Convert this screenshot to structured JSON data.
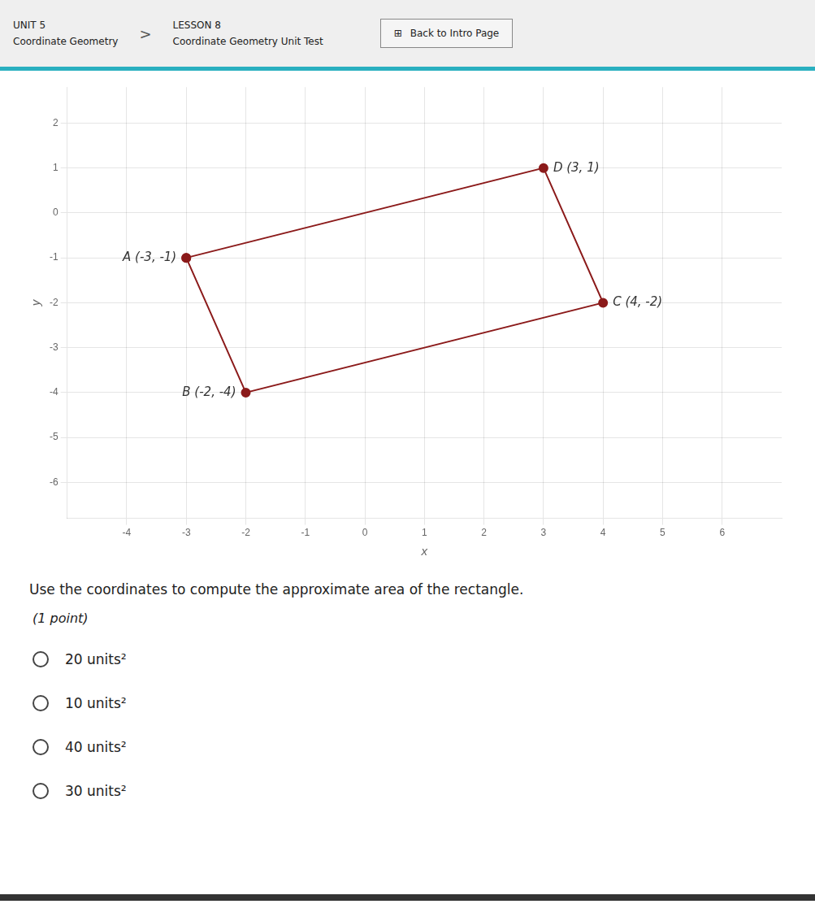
{
  "chart_data": {
    "type": "line",
    "xlabel": "x",
    "ylabel": "y",
    "x": [
      -3,
      3,
      4,
      -2,
      -3
    ],
    "values": [
      -1,
      1,
      -2,
      -4,
      -1
    ],
    "color": "#8b1a1a",
    "marker": "o",
    "xlim": [
      -5.0,
      7.0
    ],
    "ylim": [
      -6.8,
      2.8
    ],
    "xticks": [
      -4,
      -3,
      -2,
      -1,
      0,
      1,
      2,
      3,
      4,
      5,
      6
    ],
    "yticks": [
      -6,
      -5,
      -4,
      -3,
      -2,
      -1,
      0,
      1,
      2
    ],
    "grid": true,
    "annotations": [
      {
        "text": "A (-3, -1)",
        "x": -3,
        "y": -1
      },
      {
        "text": "B (-2, -4)",
        "x": -2,
        "y": -4
      },
      {
        "text": "C (4, -2)",
        "x": 4,
        "y": -2
      },
      {
        "text": "D (3, 1)",
        "x": 3,
        "y": 1
      }
    ]
  },
  "page": {
    "header_left": [
      "UNIT 5",
      "Coordinate Geometry"
    ],
    "separator": ">",
    "header_right": [
      "LESSON 8",
      "Coordinate Geometry Unit Test"
    ],
    "button_icon": "⊞",
    "button": "Back to Intro Page",
    "question": "Use the coordinates to compute the approximate area of the rectangle.",
    "point_label": "(1 point)",
    "choices": [
      "20 units²",
      "10 units²",
      "40 units²",
      "30 units²"
    ]
  }
}
